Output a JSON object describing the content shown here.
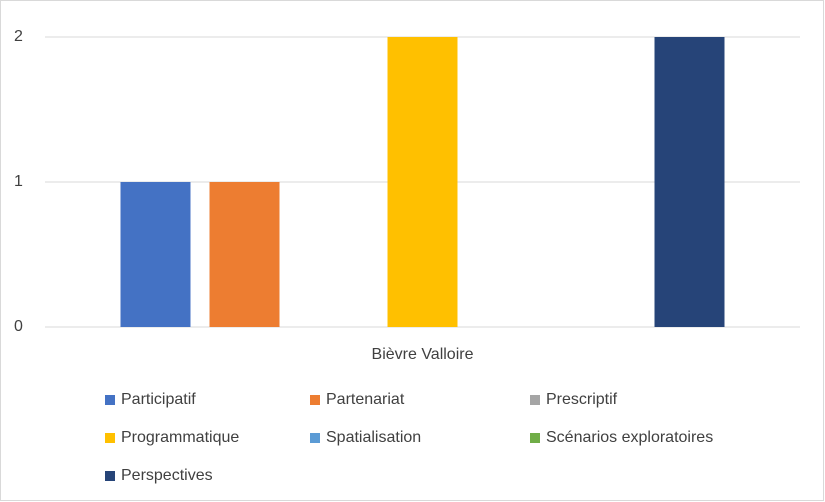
{
  "chart_data": {
    "type": "bar",
    "categories": [
      "Bièvre Valloire"
    ],
    "series": [
      {
        "name": "Participatif",
        "color": "#4472c4",
        "values": [
          1
        ]
      },
      {
        "name": "Partenariat",
        "color": "#ed7d31",
        "values": [
          1
        ]
      },
      {
        "name": "Prescriptif",
        "color": "#a5a5a5",
        "values": [
          0
        ]
      },
      {
        "name": "Programmatique",
        "color": "#ffc000",
        "values": [
          2
        ]
      },
      {
        "name": "Spatialisation",
        "color": "#5b9bd5",
        "values": [
          0
        ]
      },
      {
        "name": "Scénarios exploratoires",
        "color": "#70ad47",
        "values": [
          0
        ]
      },
      {
        "name": "Perspectives",
        "color": "#264478",
        "values": [
          2
        ]
      }
    ],
    "ylim": [
      0,
      2
    ],
    "yticks": [
      0,
      1,
      2
    ],
    "grid": true,
    "legend": "bottom"
  }
}
